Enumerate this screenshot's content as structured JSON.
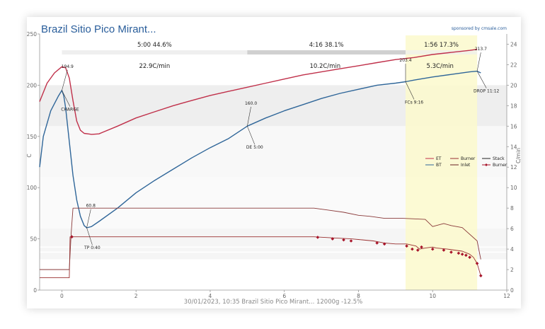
{
  "chart_data": {
    "type": "line",
    "title": "Brazil Sitio Pico Mirant...",
    "sponsor": "sponsored by cmsale.com",
    "footer": "30/01/2023, 10:35 Brazil Sitio Pico Mirant...   12000g   -12.5%",
    "xlim": [
      -0.6,
      12
    ],
    "ylim": [
      0,
      250
    ],
    "y2lim": [
      0,
      25
    ],
    "xticks": [
      "0",
      "2",
      "4",
      "6",
      "8",
      "10",
      "12"
    ],
    "xtick_values": [
      0,
      2,
      4,
      6,
      8,
      10,
      12
    ],
    "yticks": [
      "0",
      "50",
      "100",
      "150",
      "200",
      "250"
    ],
    "ytick_values": [
      0,
      50,
      100,
      150,
      200,
      250
    ],
    "y2ticks": [
      "0",
      "2",
      "4",
      "6",
      "8",
      "10",
      "12",
      "14",
      "16",
      "18",
      "20",
      "22",
      "24"
    ],
    "y2tick_values": [
      0,
      2,
      4,
      6,
      8,
      10,
      12,
      14,
      16,
      18,
      20,
      22,
      24
    ],
    "ylabel_left": "C",
    "ylabel_right": "C/min",
    "colors": {
      "et": "#c0304a",
      "bt": "#2f6699",
      "burner": "#9a3030",
      "burner_pts": "#a8142a",
      "dev": "#fbf9cc"
    },
    "phases": [
      {
        "label": "5:00  44.6%",
        "start": 0,
        "end": 5,
        "shade": "#efefef"
      },
      {
        "label": "4:16  38.1%",
        "start": 5,
        "end": 9.27,
        "shade": "#d0d0d0"
      },
      {
        "label": "1:56  17.3%",
        "start": 9.27,
        "end": 11.2,
        "shade": "#f2f2e6"
      }
    ],
    "ror_labels": [
      {
        "label": "22.9C/min",
        "x": 2.5
      },
      {
        "label": "10.2C/min",
        "x": 7.1
      },
      {
        "label": "5.3C/min",
        "x": 10.2
      }
    ],
    "development_band": [
      9.27,
      11.2
    ],
    "annotations": [
      {
        "label": "194.9",
        "x": 0.0,
        "y": 194.9,
        "tx": 0.15,
        "ty": 217
      },
      {
        "label": "CHARGE",
        "x": 0.0,
        "y": 194.9,
        "tx": 0.22,
        "ty": 175
      },
      {
        "label": "60.8",
        "x": 0.67,
        "y": 60.8,
        "tx": 0.78,
        "ty": 81
      },
      {
        "label": "TP 0:40",
        "x": 0.67,
        "y": 60.8,
        "tx": 0.82,
        "ty": 40
      },
      {
        "label": "160.0",
        "x": 5.0,
        "y": 160.0,
        "tx": 5.1,
        "ty": 181
      },
      {
        "label": "DE 5:00",
        "x": 5.0,
        "y": 160.0,
        "tx": 5.2,
        "ty": 138
      },
      {
        "label": "203.4",
        "x": 9.27,
        "y": 203.4,
        "tx": 9.27,
        "ty": 223
      },
      {
        "label": "FCs 9:16",
        "x": 9.27,
        "y": 203.4,
        "tx": 9.5,
        "ty": 182
      },
      {
        "label": "213.7",
        "x": 11.2,
        "y": 213.7,
        "tx": 11.3,
        "ty": 234
      },
      {
        "label": "DROP 11:12",
        "x": 11.2,
        "y": 213.7,
        "tx": 11.45,
        "ty": 193
      }
    ],
    "legend": [
      "ET",
      "Burner",
      "Stack",
      "BT",
      "Inlet",
      "Burner"
    ],
    "series": [
      {
        "name": "ET",
        "x": [
          -0.6,
          -0.4,
          -0.2,
          0.0,
          0.1,
          0.2,
          0.3,
          0.4,
          0.5,
          0.6,
          0.8,
          1.0,
          1.1,
          1.5,
          2,
          2.5,
          3,
          3.5,
          4,
          4.5,
          5,
          5.5,
          6,
          6.5,
          7,
          7.5,
          8,
          8.5,
          9,
          9.5,
          10,
          10.5,
          11,
          11.2
        ],
        "y": [
          184,
          202,
          212,
          218,
          217,
          207,
          185,
          165,
          156,
          153,
          152,
          152.5,
          154,
          160,
          168,
          174,
          180,
          185,
          190,
          194,
          198,
          202,
          206,
          210,
          213,
          216,
          219,
          222,
          225,
          227,
          230,
          232,
          234,
          235
        ]
      },
      {
        "name": "BT",
        "x": [
          -0.6,
          -0.5,
          -0.3,
          -0.1,
          0.0,
          0.05,
          0.1,
          0.2,
          0.3,
          0.4,
          0.5,
          0.6,
          0.67,
          0.8,
          1.0,
          1.5,
          2,
          2.5,
          3,
          3.5,
          4,
          4.5,
          5,
          5.5,
          6,
          6.5,
          7,
          7.5,
          8,
          8.5,
          9,
          9.27,
          9.5,
          10,
          10.5,
          11,
          11.2,
          11.3
        ],
        "y": [
          120,
          150,
          175,
          189,
          194.9,
          190,
          178,
          145,
          112,
          88,
          72,
          63,
          60.8,
          62,
          67,
          80,
          95,
          107,
          118,
          129,
          139,
          148,
          160,
          168,
          175,
          181,
          187,
          192,
          196,
          200,
          202,
          203.4,
          205,
          208,
          210.5,
          213,
          213.7,
          212
        ]
      },
      {
        "name": "Burner",
        "x": [
          -0.6,
          0.2,
          0.22,
          0.3,
          6.8,
          7.3,
          7.8,
          8.1,
          8.4,
          8.7,
          9.0,
          9.3,
          9.55,
          9.65,
          9.8,
          10.0,
          10.1,
          10.4,
          10.8,
          11.0,
          11.1,
          11.2,
          11.3
        ],
        "y": [
          1.2,
          1.2,
          5.2,
          5.2,
          5.2,
          5.1,
          5.0,
          4.9,
          4.8,
          4.6,
          4.5,
          4.5,
          4.3,
          4.0,
          4.1,
          4.2,
          4.1,
          4.0,
          3.8,
          3.5,
          3.2,
          2.6,
          1.4
        ]
      },
      {
        "name": "Inlet",
        "x": [
          -0.6,
          0.2,
          0.25,
          0.3,
          6.8,
          7.2,
          7.6,
          8.0,
          8.3,
          8.7,
          9.2,
          9.8,
          10.0,
          10.3,
          10.5,
          10.8,
          11.2,
          11.3
        ],
        "y": [
          2.0,
          2.0,
          5.5,
          8.0,
          8.0,
          7.8,
          7.6,
          7.3,
          7.2,
          7.0,
          7.0,
          6.9,
          6.2,
          6.5,
          6.3,
          6.1,
          4.8,
          3.0
        ]
      }
    ],
    "burner_points": {
      "x": [
        0.27,
        6.9,
        7.3,
        7.6,
        7.8,
        8.5,
        8.7,
        9.3,
        9.45,
        9.6,
        9.7,
        10.0,
        10.3,
        10.5,
        10.7,
        10.8,
        10.9,
        11.0,
        11.2,
        11.3
      ],
      "y": [
        5.2,
        5.15,
        5.0,
        4.9,
        4.8,
        4.6,
        4.5,
        4.3,
        4.0,
        3.9,
        4.2,
        4.0,
        3.9,
        3.7,
        3.6,
        3.5,
        3.4,
        3.2,
        2.6,
        1.4
      ]
    }
  }
}
